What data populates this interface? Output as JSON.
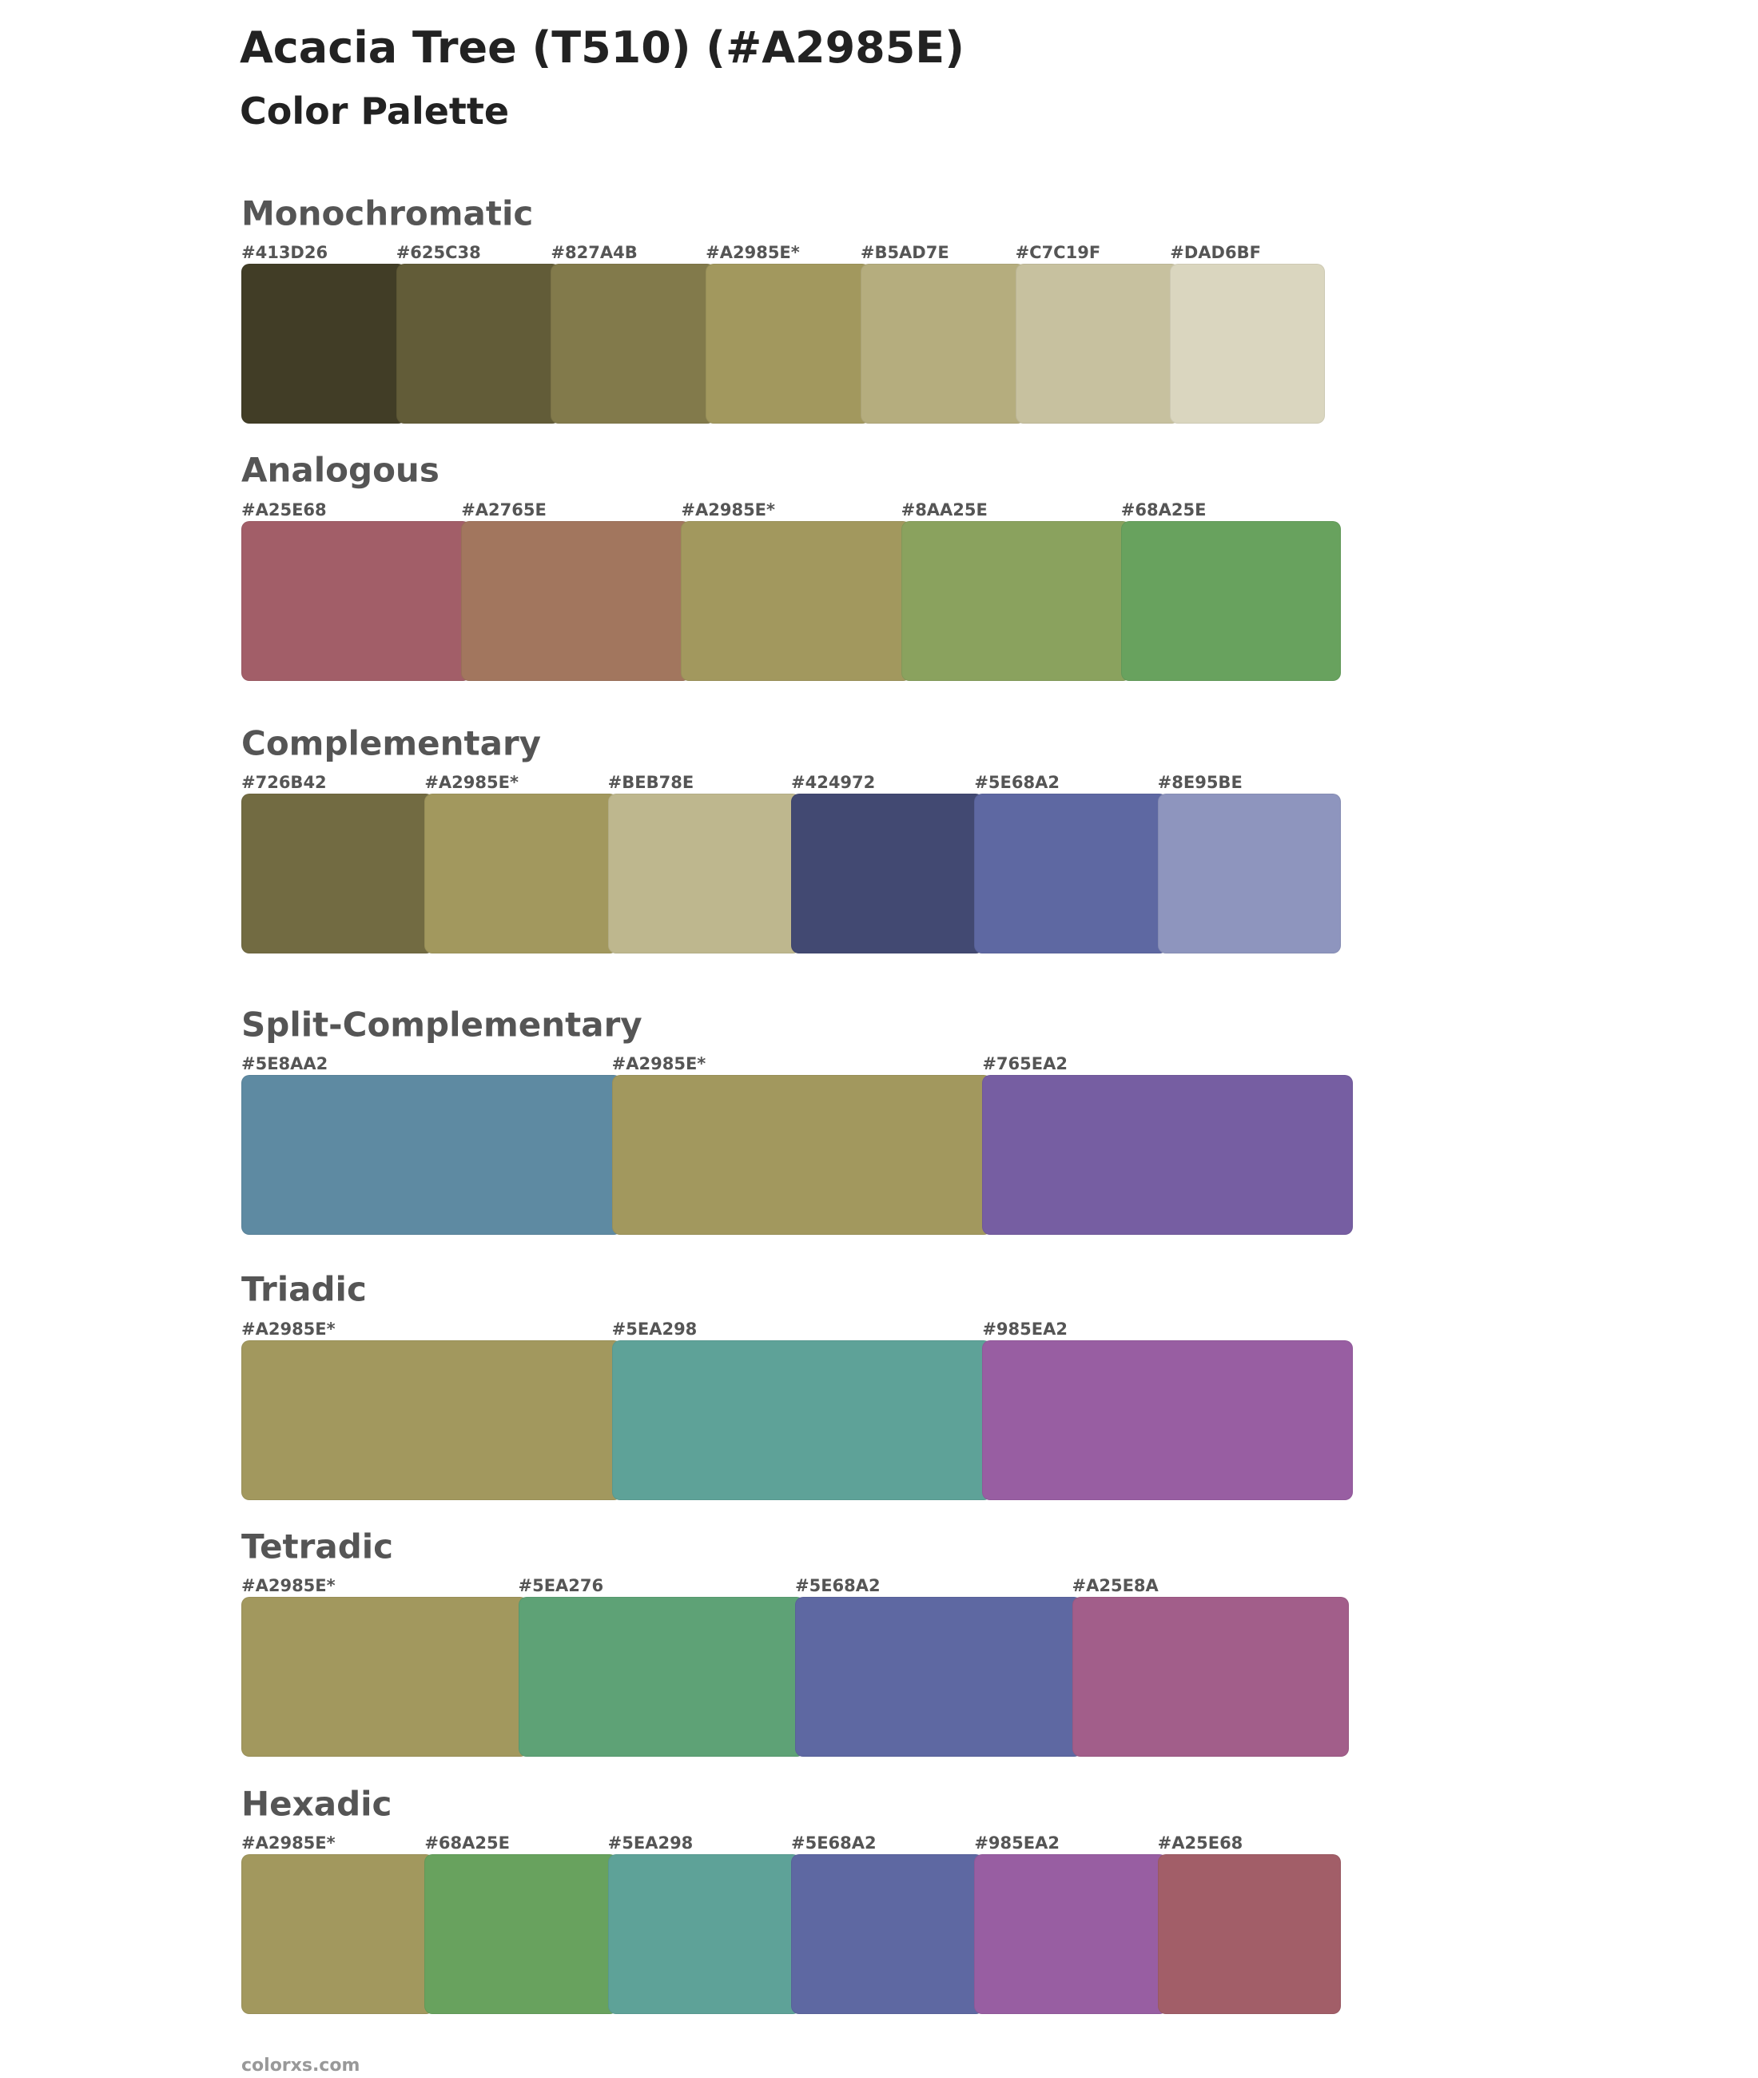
{
  "header": {
    "title": "Acacia Tree (T510) (#A2985E)",
    "subtitle": "Color Palette"
  },
  "sections": [
    {
      "name": "Monochromatic",
      "swatches": [
        {
          "label": "#413D26",
          "color": "#413D26"
        },
        {
          "label": "#625C38",
          "color": "#625C38"
        },
        {
          "label": "#827A4B",
          "color": "#827A4B"
        },
        {
          "label": "#A2985E*",
          "color": "#A2985E"
        },
        {
          "label": "#B5AD7E",
          "color": "#B5AD7E"
        },
        {
          "label": "#C7C19F",
          "color": "#C7C19F"
        },
        {
          "label": "#DAD6BF",
          "color": "#DAD6BF"
        }
      ]
    },
    {
      "name": "Analogous",
      "swatches": [
        {
          "label": "#A25E68",
          "color": "#A25E68"
        },
        {
          "label": "#A2765E",
          "color": "#A2765E"
        },
        {
          "label": "#A2985E*",
          "color": "#A2985E"
        },
        {
          "label": "#8AA25E",
          "color": "#8AA25E"
        },
        {
          "label": "#68A25E",
          "color": "#68A25E"
        }
      ]
    },
    {
      "name": "Complementary",
      "swatches": [
        {
          "label": "#726B42",
          "color": "#726B42"
        },
        {
          "label": "#A2985E*",
          "color": "#A2985E"
        },
        {
          "label": "#BEB78E",
          "color": "#BEB78E"
        },
        {
          "label": "#424972",
          "color": "#424972"
        },
        {
          "label": "#5E68A2",
          "color": "#5E68A2"
        },
        {
          "label": "#8E95BE",
          "color": "#8E95BE"
        }
      ]
    },
    {
      "name": "Split-Complementary",
      "swatches": [
        {
          "label": "#5E8AA2",
          "color": "#5E8AA2"
        },
        {
          "label": "#A2985E*",
          "color": "#A2985E"
        },
        {
          "label": "#765EA2",
          "color": "#765EA2"
        }
      ]
    },
    {
      "name": "Triadic",
      "swatches": [
        {
          "label": "#A2985E*",
          "color": "#A2985E"
        },
        {
          "label": "#5EA298",
          "color": "#5EA298"
        },
        {
          "label": "#985EA2",
          "color": "#985EA2"
        }
      ]
    },
    {
      "name": "Tetradic",
      "swatches": [
        {
          "label": "#A2985E*",
          "color": "#A2985E"
        },
        {
          "label": "#5EA276",
          "color": "#5EA276"
        },
        {
          "label": "#5E68A2",
          "color": "#5E68A2"
        },
        {
          "label": "#A25E8A",
          "color": "#A25E8A"
        }
      ]
    },
    {
      "name": "Hexadic",
      "swatches": [
        {
          "label": "#A2985E*",
          "color": "#A2985E"
        },
        {
          "label": "#68A25E",
          "color": "#68A25E"
        },
        {
          "label": "#5EA298",
          "color": "#5EA298"
        },
        {
          "label": "#5E68A2",
          "color": "#5E68A2"
        },
        {
          "label": "#985EA2",
          "color": "#985EA2"
        },
        {
          "label": "#A25E68",
          "color": "#A25E68"
        }
      ]
    }
  ],
  "footer": "colorxs.com"
}
